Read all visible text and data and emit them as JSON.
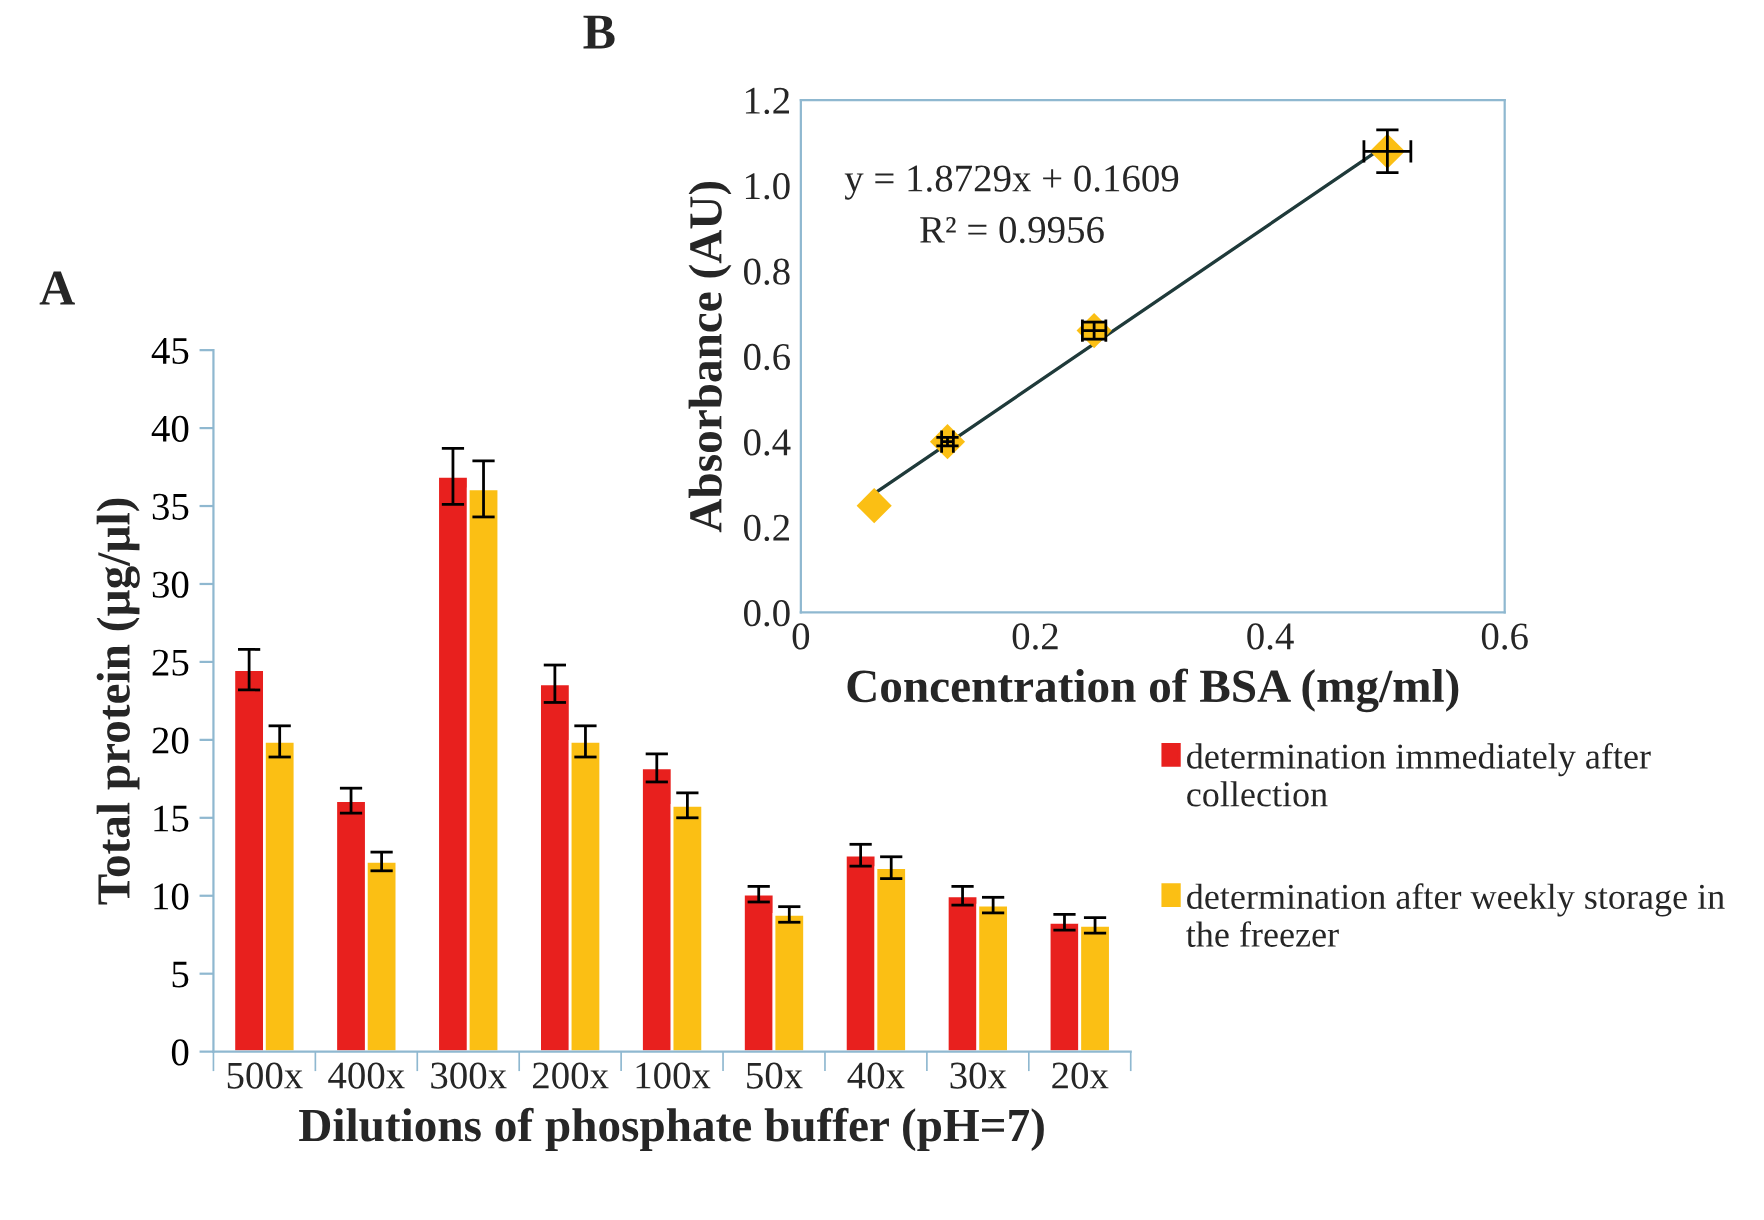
{
  "chart_data": [
    {
      "type": "bar",
      "title": "A",
      "xlabel": "Dilutions of phosphate buffer (pH=7)",
      "ylabel": "Total protein (µg/µl)",
      "categories": [
        "500x",
        "400x",
        "300x",
        "200x",
        "100x",
        "50x",
        "40x",
        "30x",
        "20x"
      ],
      "series": [
        {
          "name": "determination immediately after collection",
          "color": "#e8201e",
          "values": [
            24.5,
            16.1,
            36.9,
            23.6,
            18.2,
            10.1,
            12.6,
            10.0,
            8.3
          ],
          "errors": [
            1.3,
            0.8,
            1.8,
            1.2,
            0.9,
            0.5,
            0.7,
            0.6,
            0.5
          ]
        },
        {
          "name": "determination after weekly storage in the freezer",
          "color": "#fbbf14",
          "values": [
            19.9,
            12.2,
            36.1,
            19.9,
            15.8,
            8.8,
            11.8,
            9.4,
            8.1
          ],
          "errors": [
            1.0,
            0.6,
            1.8,
            1.0,
            0.8,
            0.5,
            0.7,
            0.5,
            0.5
          ]
        }
      ],
      "ylim": [
        0,
        45
      ],
      "yticks": [
        0,
        5,
        10,
        15,
        20,
        25,
        30,
        35,
        40,
        45
      ],
      "grid": false,
      "legend": "right"
    },
    {
      "type": "scatter",
      "title": "B",
      "xlabel": "Concentration of BSA (mg/ml)",
      "ylabel": "Absorbance (AU)",
      "series": [
        {
          "type": "scatter",
          "color": "#fbbf14",
          "marker": "diamond",
          "x": [
            0.0625,
            0.125,
            0.25,
            0.5
          ],
          "values": [
            0.25,
            0.4,
            0.66,
            1.08
          ],
          "errors": [
            null,
            0.01,
            0.02,
            0.05
          ],
          "xerrors": [
            null,
            0.005,
            0.01,
            0.02
          ]
        },
        {
          "type": "line",
          "color": "#1f3a3a",
          "x": [
            0.0625,
            0.5
          ],
          "values": [
            0.278,
            1.097
          ]
        }
      ],
      "annotations": [
        "y = 1.8729x + 0.1609",
        "R² = 0.9956"
      ],
      "xlim": [
        0,
        0.6
      ],
      "xticks": [
        {
          "value": 0,
          "label": "0"
        },
        {
          "value": 0.2,
          "label": "0.2"
        },
        {
          "value": 0.4,
          "label": "0.4"
        },
        {
          "value": 0.6,
          "label": "0.6"
        }
      ],
      "ylim": [
        0,
        1.2
      ],
      "yticks": [
        {
          "value": 0,
          "label": "0.0"
        },
        {
          "value": 0.2,
          "label": "0.2"
        },
        {
          "value": 0.4,
          "label": "0.4"
        },
        {
          "value": 0.6,
          "label": "0.6"
        },
        {
          "value": 0.8,
          "label": "0.8"
        },
        {
          "value": 1.0,
          "label": "1.0"
        },
        {
          "value": 1.2,
          "label": "1.2"
        }
      ],
      "grid": false,
      "legend": false
    }
  ]
}
